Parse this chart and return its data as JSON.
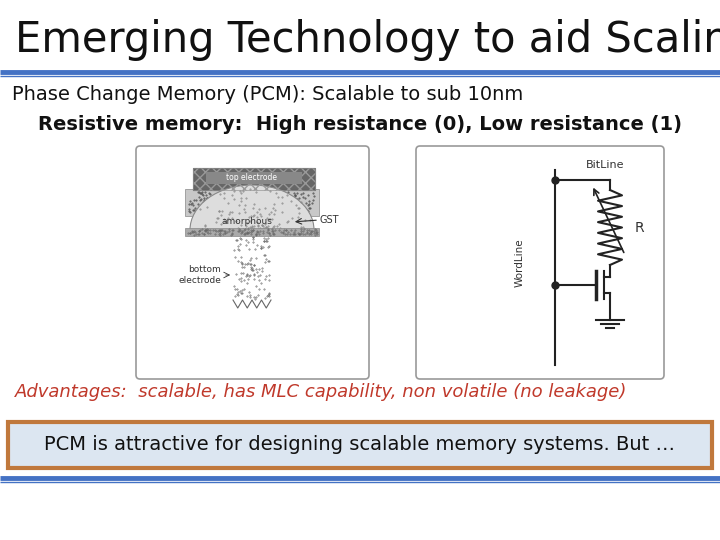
{
  "title": "Emerging Technology to aid Scaling",
  "subtitle": "Phase Change Memory (PCM): Scalable to sub 10nm",
  "line1": "Resistive memory:  High resistance (0), Low resistance (1)",
  "advantages": "Advantages:  scalable, has MLC capability, non volatile (no leakage)",
  "footer": "PCM is attractive for designing scalable memory systems. But …",
  "title_color": "#111111",
  "separator_color": "#4472c4",
  "footer_bg": "#dce6f1",
  "footer_border": "#c0783c",
  "footer_text_color": "#111111",
  "advantages_color": "#c0392b",
  "bg_color": "#ffffff",
  "title_fontsize": 30,
  "subtitle_fontsize": 14,
  "line1_fontsize": 14,
  "advantages_fontsize": 13,
  "footer_fontsize": 14
}
